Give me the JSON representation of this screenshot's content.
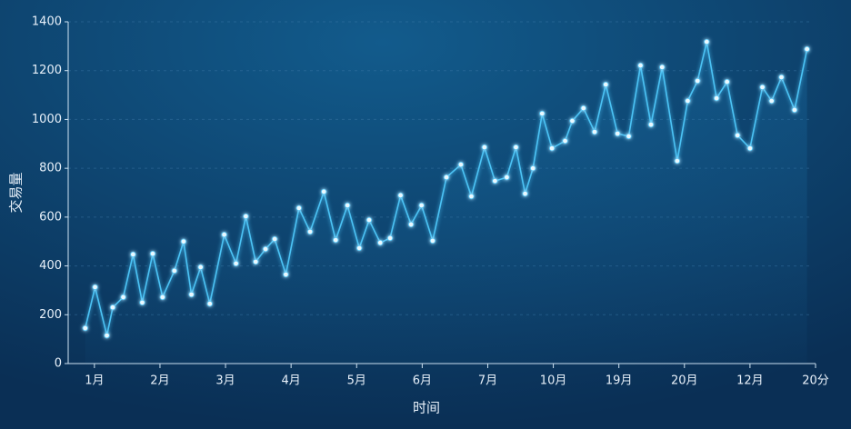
{
  "chart_data": {
    "type": "line",
    "x_label": "时间",
    "y_label": "交易量",
    "x": [
      0.86,
      1.01,
      1.19,
      1.28,
      1.44,
      1.59,
      1.73,
      1.89,
      2.04,
      2.22,
      2.36,
      2.48,
      2.62,
      2.76,
      2.98,
      3.16,
      3.31,
      3.46,
      3.61,
      3.75,
      3.92,
      4.12,
      4.29,
      4.5,
      4.68,
      4.86,
      5.04,
      5.19,
      5.36,
      5.51,
      5.67,
      5.83,
      5.99,
      6.16,
      6.37,
      6.59,
      6.75,
      6.95,
      7.11,
      7.29,
      7.43,
      7.57,
      7.69,
      7.83,
      7.98,
      8.18,
      8.29,
      8.46,
      8.63,
      8.8,
      8.98,
      9.15,
      9.33,
      9.49,
      9.66,
      9.89,
      10.05,
      10.2,
      10.34,
      10.49,
      10.65,
      10.81,
      11.0,
      11.19,
      11.33,
      11.48,
      11.68,
      11.87
    ],
    "series": [
      {
        "name": "交易量",
        "color": "#4cc3f5",
        "values": [
          145,
          313,
          115,
          230,
          272,
          447,
          250,
          450,
          272,
          380,
          500,
          283,
          395,
          245,
          528,
          410,
          603,
          417,
          469,
          510,
          365,
          637,
          540,
          704,
          506,
          648,
          473,
          588,
          495,
          514,
          689,
          570,
          648,
          503,
          763,
          815,
          685,
          886,
          748,
          763,
          886,
          696,
          800,
          1024,
          882,
          912,
          994,
          1046,
          949,
          1143,
          942,
          931,
          1221,
          979,
          1214,
          830,
          1076,
          1158,
          1318,
          1087,
          1154,
          935,
          882,
          1132,
          1076,
          1173,
          1039,
          1288
        ]
      }
    ],
    "xlim": [
      0.6,
      12
    ],
    "ylim": [
      0,
      1400
    ],
    "xticks": [
      {
        "value": 1,
        "label": "1月"
      },
      {
        "value": 2,
        "label": "2月"
      },
      {
        "value": 3,
        "label": "3月"
      },
      {
        "value": 4,
        "label": "4月"
      },
      {
        "value": 5,
        "label": "5月"
      },
      {
        "value": 6,
        "label": "6月"
      },
      {
        "value": 7,
        "label": "7月"
      },
      {
        "value": 8,
        "label": "10月"
      },
      {
        "value": 9,
        "label": "19月"
      },
      {
        "value": 10,
        "label": "20月"
      },
      {
        "value": 11,
        "label": "12月"
      },
      {
        "value": 12,
        "label": "20分"
      }
    ],
    "yticks": [
      0,
      200,
      400,
      600,
      800,
      1000,
      1200,
      1400
    ],
    "grid": true
  }
}
